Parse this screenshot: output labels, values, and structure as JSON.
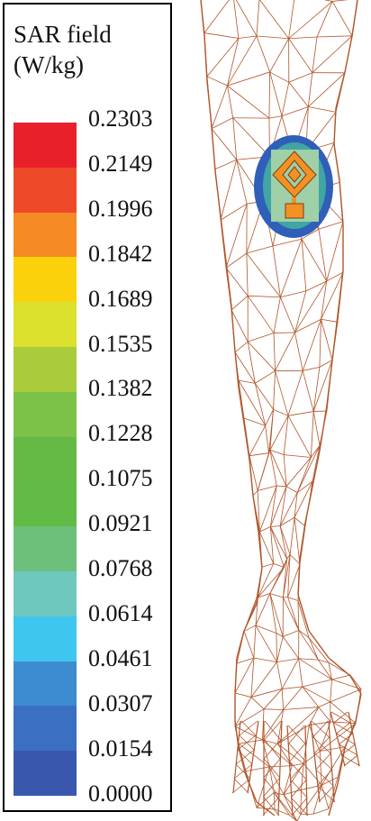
{
  "legend": {
    "title_line1": "SAR field",
    "title_line2": "(W/kg)",
    "ticks": [
      "0.2303",
      "0.2149",
      "0.1996",
      "0.1842",
      "0.1689",
      "0.1535",
      "0.1382",
      "0.1228",
      "0.1075",
      "0.0921",
      "0.0768",
      "0.0614",
      "0.0461",
      "0.0307",
      "0.0154",
      "0.0000"
    ],
    "colors": [
      "#e8202a",
      "#ee4a2a",
      "#f68a24",
      "#fbd10c",
      "#dbe12c",
      "#a9cb3c",
      "#7cc248",
      "#64ba45",
      "#62bb46",
      "#6dc07b",
      "#6ec8be",
      "#3fc6ee",
      "#3d8bd0",
      "#3b6fc1",
      "#3a57ae"
    ]
  },
  "arm": {
    "mesh_color": "#b0552a",
    "patch_colors": {
      "hotspot_outer": "#2f5fb8",
      "hotspot_ring": "#46b7a0",
      "substrate": "#9fd0a8",
      "antenna": "#f39124",
      "antenna_edge": "#7a3f10"
    }
  }
}
